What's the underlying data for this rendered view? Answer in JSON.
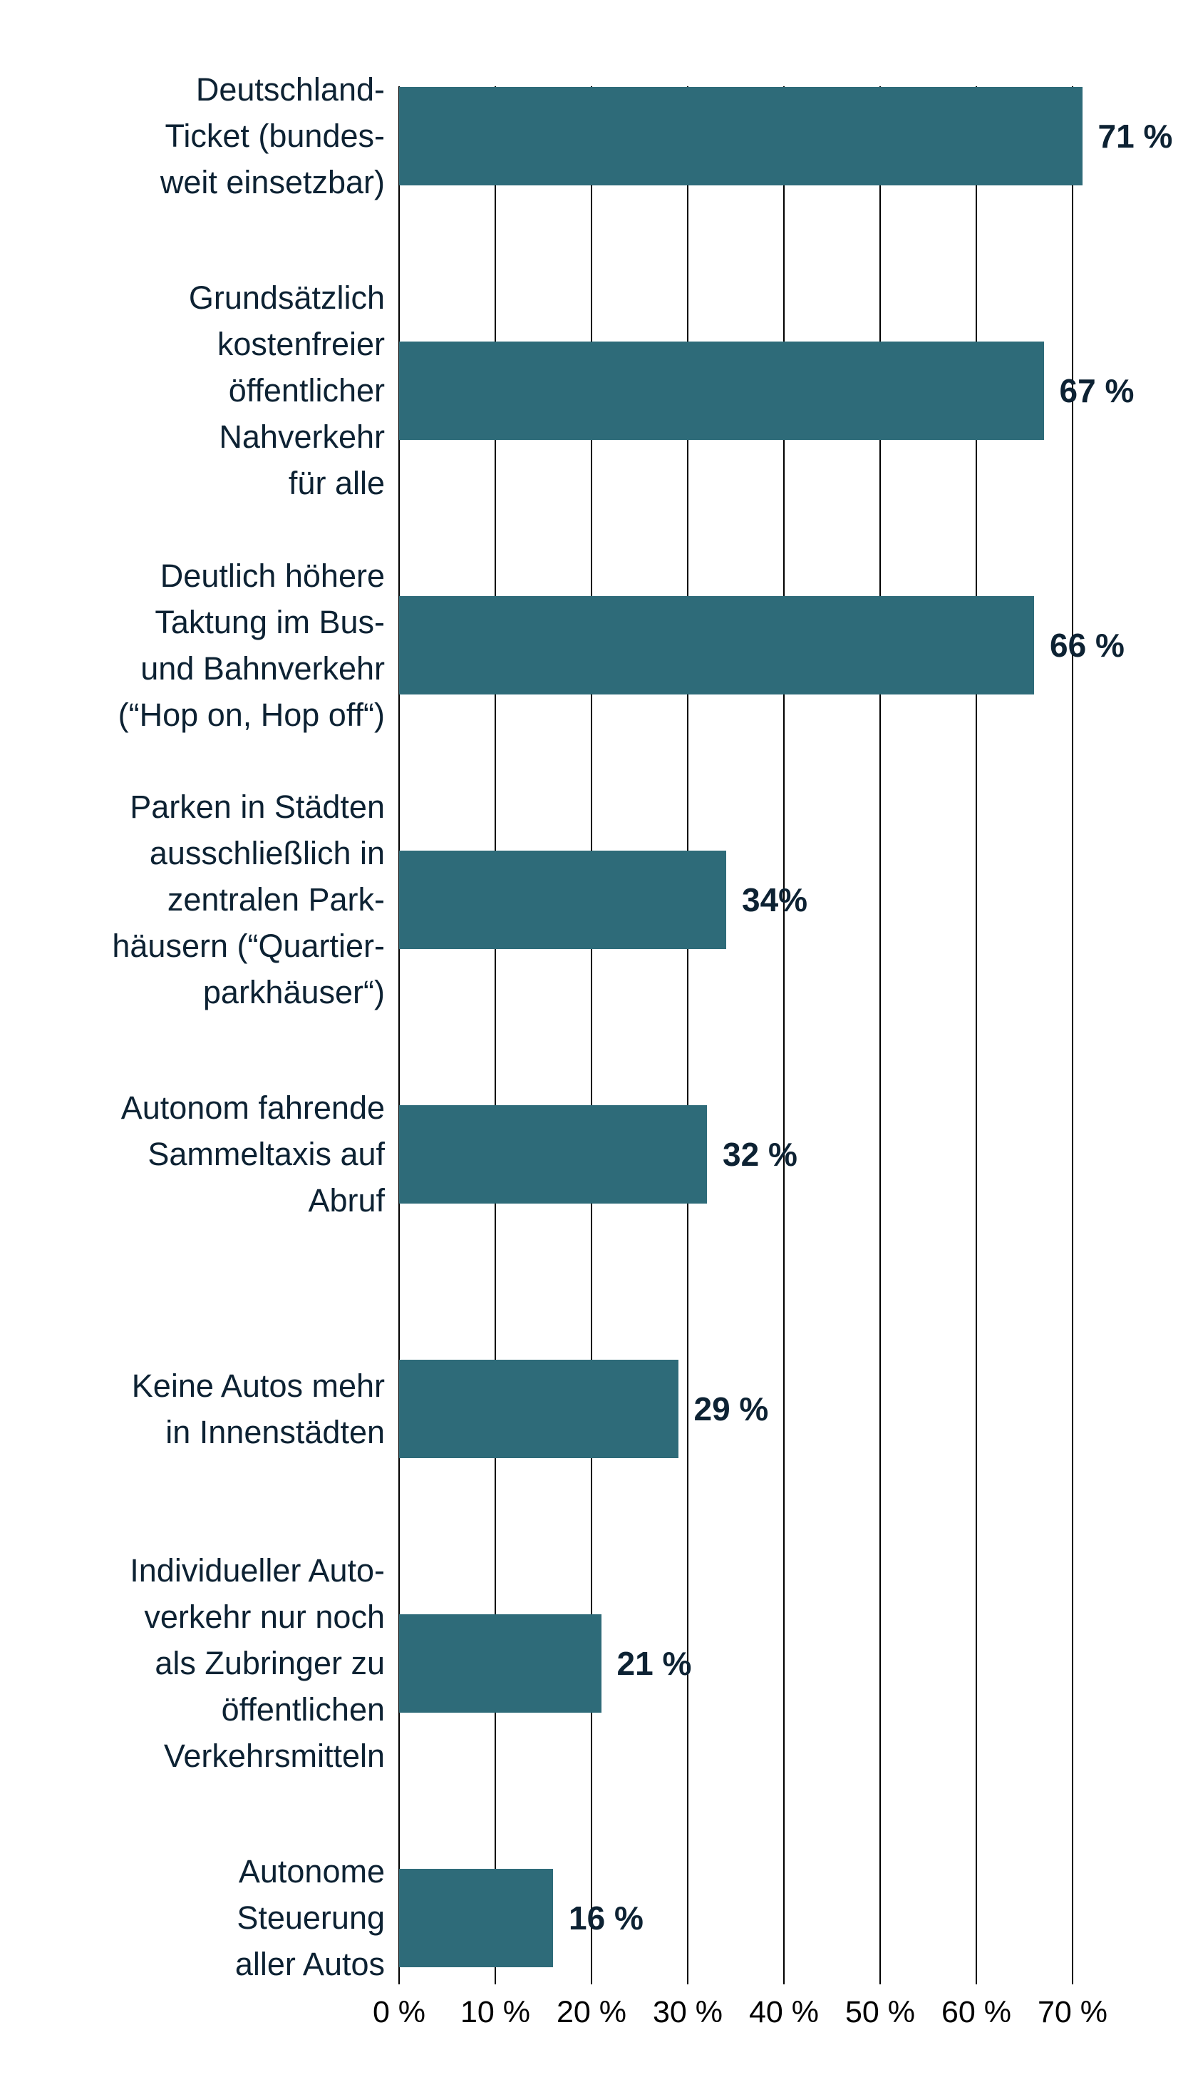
{
  "chart_data": {
    "type": "bar",
    "orientation": "horizontal",
    "title": "",
    "xlabel": "",
    "ylabel": "",
    "categories": [
      "Deutschland-Ticket (bundesweit einsetzbar)",
      "Grundsätzlich kostenfreier öffentlicher Nahverkehr für alle",
      "Deutlich höhere Taktung im Bus- und Bahnverkehr (“Hop on, Hop off“)",
      "Parken in Städten ausschließlich in zentralen Parkhäusern (“Quartierparkhäuser“)",
      "Autonom fahrende Sammeltaxis auf Abruf",
      "Keine Autos mehr in Innenstädten",
      "Individueller Autoverkehr nur noch als Zubringer zu öffentlichen Verkehrsmitteln",
      "Autonome Steuerung aller Autos"
    ],
    "category_lines": [
      [
        "Deutschland-",
        "Ticket (bundes-",
        "weit einsetzbar)"
      ],
      [
        "Grundsätzlich",
        "kostenfreier",
        "öffentlicher",
        "Nahverkehr",
        "für alle"
      ],
      [
        "Deutlich höhere",
        "Taktung im Bus-",
        "und Bahnverkehr",
        "(“Hop on, Hop off“)"
      ],
      [
        "Parken in Städten",
        "ausschließlich in",
        "zentralen Park-",
        "häusern (“Quartier-",
        "parkhäuser“)"
      ],
      [
        "Autonom fahrende",
        "Sammeltaxis auf",
        "Abruf"
      ],
      [
        "Keine Autos mehr",
        "in Innenstädten"
      ],
      [
        "Individueller Auto-",
        "verkehr nur noch",
        "als Zubringer zu",
        "öffentlichen",
        "Verkehrsmitteln"
      ],
      [
        "Autonome",
        "Steuerung",
        "aller Autos"
      ]
    ],
    "values": [
      71,
      67,
      66,
      34,
      32,
      29,
      21,
      16
    ],
    "value_labels": [
      "71 %",
      "67 %",
      "66 %",
      "34%",
      "32 %",
      "29 %",
      "21 %",
      "16 %"
    ],
    "x_ticks": [
      "0 %",
      "10 %",
      "20 %",
      "30 %",
      "40 %",
      "50 %",
      "60 %",
      "70 %"
    ],
    "x_tick_values": [
      0,
      10,
      20,
      30,
      40,
      50,
      60,
      70
    ],
    "xlim": [
      0,
      70
    ],
    "grid": "vertical gridlines at every 10 %, no horizontal axis line",
    "legend": "none",
    "bar_color": "#2e6b79",
    "label_color": "#0d2233",
    "axis_text_color": "#000000",
    "background_color": "#ffffff"
  }
}
